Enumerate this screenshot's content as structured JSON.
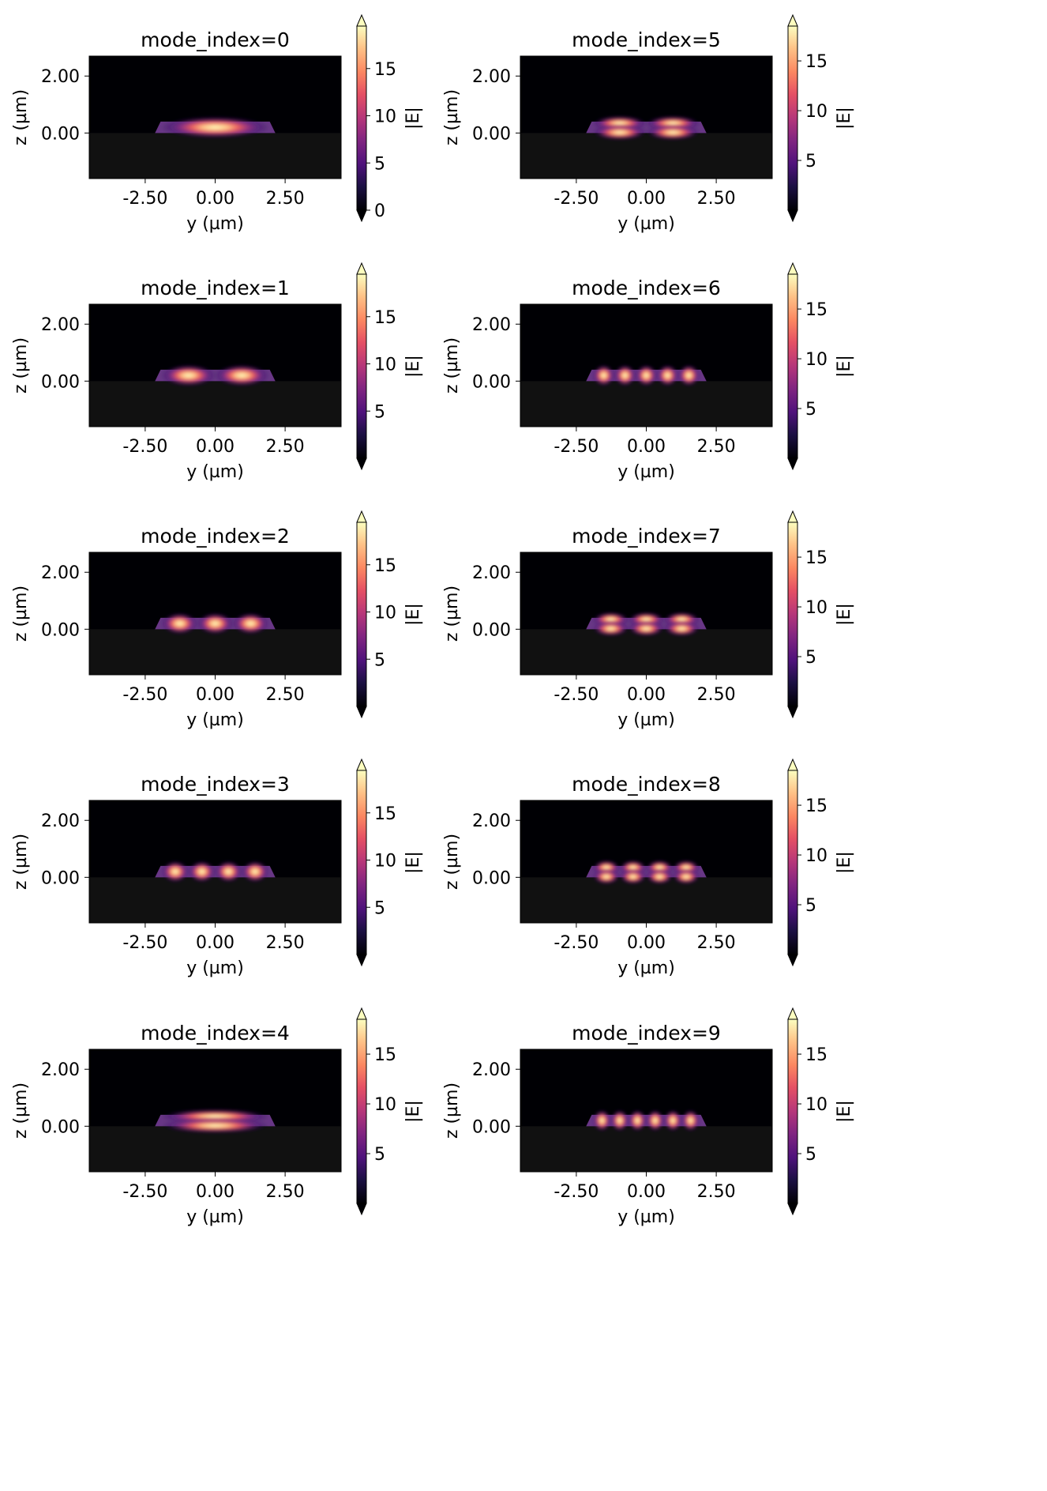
{
  "figure": {
    "colormap": "magma",
    "substrate_color": "#111111",
    "cladding_color": "#000004"
  },
  "chart_data": [
    {
      "type": "heatmap",
      "title": "mode_index=0",
      "xlabel": "y (µm)",
      "ylabel": "z (µm)",
      "xlim": [
        -4.5,
        4.5
      ],
      "ylim": [
        -1.6,
        2.7
      ],
      "xticks": [
        "-2.50",
        "0.00",
        "2.50"
      ],
      "yticks": [
        "2.00",
        "0.00"
      ],
      "colorbar": {
        "label": "|E|",
        "range": [
          0,
          19.5
        ],
        "ticks": [
          "0",
          "5",
          "10",
          "15"
        ]
      },
      "field": {
        "lobes_x": 1,
        "lobes_z": 1,
        "peak": 19
      }
    },
    {
      "type": "heatmap",
      "title": "mode_index=5",
      "xlabel": "y (µm)",
      "ylabel": "z (µm)",
      "xlim": [
        -4.5,
        4.5
      ],
      "ylim": [
        -1.6,
        2.7
      ],
      "xticks": [
        "-2.50",
        "0.00",
        "2.50"
      ],
      "yticks": [
        "2.00",
        "0.00"
      ],
      "colorbar": {
        "label": "|E|",
        "range": [
          0,
          18.5
        ],
        "ticks": [
          "5",
          "10",
          "15"
        ]
      },
      "field": {
        "lobes_x": 2,
        "lobes_z": 2,
        "peak": 18
      }
    },
    {
      "type": "heatmap",
      "title": "mode_index=1",
      "xlabel": "y (µm)",
      "ylabel": "z (µm)",
      "xlim": [
        -4.5,
        4.5
      ],
      "ylim": [
        -1.6,
        2.7
      ],
      "xticks": [
        "-2.50",
        "0.00",
        "2.50"
      ],
      "yticks": [
        "2.00",
        "0.00"
      ],
      "colorbar": {
        "label": "|E|",
        "range": [
          0,
          19.5
        ],
        "ticks": [
          "5",
          "10",
          "15"
        ]
      },
      "field": {
        "lobes_x": 2,
        "lobes_z": 1,
        "peak": 19
      }
    },
    {
      "type": "heatmap",
      "title": "mode_index=6",
      "xlabel": "y (µm)",
      "ylabel": "z (µm)",
      "xlim": [
        -4.5,
        4.5
      ],
      "ylim": [
        -1.6,
        2.7
      ],
      "xticks": [
        "-2.50",
        "0.00",
        "2.50"
      ],
      "yticks": [
        "2.00",
        "0.00"
      ],
      "colorbar": {
        "label": "|E|",
        "range": [
          0,
          18.5
        ],
        "ticks": [
          "5",
          "10",
          "15"
        ]
      },
      "field": {
        "lobes_x": 5,
        "lobes_z": 1,
        "peak": 18
      }
    },
    {
      "type": "heatmap",
      "title": "mode_index=2",
      "xlabel": "y (µm)",
      "ylabel": "z (µm)",
      "xlim": [
        -4.5,
        4.5
      ],
      "ylim": [
        -1.6,
        2.7
      ],
      "xticks": [
        "-2.50",
        "0.00",
        "2.50"
      ],
      "yticks": [
        "2.00",
        "0.00"
      ],
      "colorbar": {
        "label": "|E|",
        "range": [
          0,
          19.5
        ],
        "ticks": [
          "5",
          "10",
          "15"
        ]
      },
      "field": {
        "lobes_x": 3,
        "lobes_z": 1,
        "peak": 19
      }
    },
    {
      "type": "heatmap",
      "title": "mode_index=7",
      "xlabel": "y (µm)",
      "ylabel": "z (µm)",
      "xlim": [
        -4.5,
        4.5
      ],
      "ylim": [
        -1.6,
        2.7
      ],
      "xticks": [
        "-2.50",
        "0.00",
        "2.50"
      ],
      "yticks": [
        "2.00",
        "0.00"
      ],
      "colorbar": {
        "label": "|E|",
        "range": [
          0,
          18.5
        ],
        "ticks": [
          "5",
          "10",
          "15"
        ]
      },
      "field": {
        "lobes_x": 3,
        "lobes_z": 2,
        "peak": 18
      }
    },
    {
      "type": "heatmap",
      "title": "mode_index=3",
      "xlabel": "y (µm)",
      "ylabel": "z (µm)",
      "xlim": [
        -4.5,
        4.5
      ],
      "ylim": [
        -1.6,
        2.7
      ],
      "xticks": [
        "-2.50",
        "0.00",
        "2.50"
      ],
      "yticks": [
        "2.00",
        "0.00"
      ],
      "colorbar": {
        "label": "|E|",
        "range": [
          0,
          19.5
        ],
        "ticks": [
          "5",
          "10",
          "15"
        ]
      },
      "field": {
        "lobes_x": 4,
        "lobes_z": 1,
        "peak": 19
      }
    },
    {
      "type": "heatmap",
      "title": "mode_index=8",
      "xlabel": "y (µm)",
      "ylabel": "z (µm)",
      "xlim": [
        -4.5,
        4.5
      ],
      "ylim": [
        -1.6,
        2.7
      ],
      "xticks": [
        "-2.50",
        "0.00",
        "2.50"
      ],
      "yticks": [
        "2.00",
        "0.00"
      ],
      "colorbar": {
        "label": "|E|",
        "range": [
          0,
          18.5
        ],
        "ticks": [
          "5",
          "10",
          "15"
        ]
      },
      "field": {
        "lobes_x": 4,
        "lobes_z": 2,
        "peak": 18
      }
    },
    {
      "type": "heatmap",
      "title": "mode_index=4",
      "xlabel": "y (µm)",
      "ylabel": "z (µm)",
      "xlim": [
        -4.5,
        4.5
      ],
      "ylim": [
        -1.6,
        2.7
      ],
      "xticks": [
        "-2.50",
        "0.00",
        "2.50"
      ],
      "yticks": [
        "2.00",
        "0.00"
      ],
      "colorbar": {
        "label": "|E|",
        "range": [
          0,
          18.5
        ],
        "ticks": [
          "5",
          "10",
          "15"
        ]
      },
      "field": {
        "lobes_x": 1,
        "lobes_z": 2,
        "peak": 18
      }
    },
    {
      "type": "heatmap",
      "title": "mode_index=9",
      "xlabel": "y (µm)",
      "ylabel": "z (µm)",
      "xlim": [
        -4.5,
        4.5
      ],
      "ylim": [
        -1.6,
        2.7
      ],
      "xticks": [
        "-2.50",
        "0.00",
        "2.50"
      ],
      "yticks": [
        "2.00",
        "0.00"
      ],
      "colorbar": {
        "label": "|E|",
        "range": [
          0,
          18.5
        ],
        "ticks": [
          "5",
          "10",
          "15"
        ]
      },
      "field": {
        "lobes_x": 6,
        "lobes_z": 1,
        "peak": 18
      }
    }
  ]
}
